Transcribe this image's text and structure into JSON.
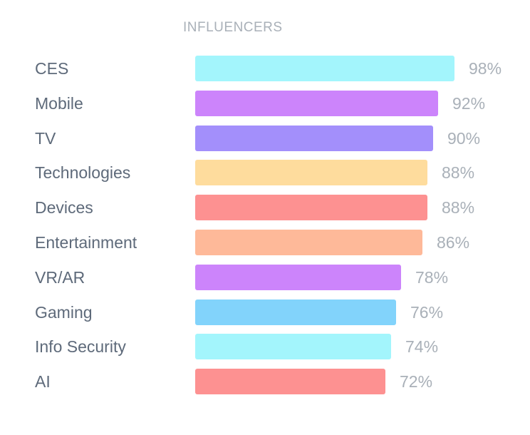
{
  "chart_data": {
    "type": "bar",
    "orientation": "horizontal",
    "title": "INFLUENCERS",
    "categories": [
      "CES",
      "Mobile",
      "TV",
      "Technologies",
      "Devices",
      "Entertainment",
      "VR/AR",
      "Gaming",
      "Info Security",
      "AI"
    ],
    "values": [
      98,
      92,
      90,
      88,
      88,
      86,
      78,
      76,
      74,
      72
    ],
    "value_labels": [
      "98%",
      "92%",
      "90%",
      "88%",
      "88%",
      "86%",
      "78%",
      "76%",
      "74%",
      "72%"
    ],
    "colors": [
      "#a3f5fc",
      "#cc84fb",
      "#a38ffb",
      "#fedc9d",
      "#fd9191",
      "#feb999",
      "#cc84fb",
      "#82d3fb",
      "#a3f5fc",
      "#fd9191"
    ],
    "grid": false,
    "legend": "none"
  }
}
